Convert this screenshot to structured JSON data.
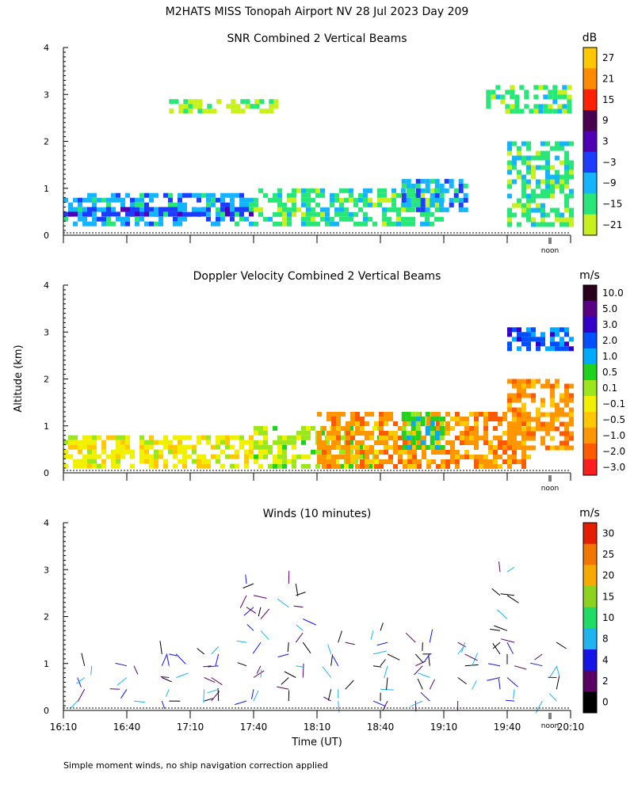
{
  "page_title": "M2HATS MISS Tonopah Airport NV  28 Jul 2023 Day 209",
  "footnote": "Simple moment winds, no ship navigation correction applied",
  "shared": {
    "ylabel": "Altitude (km)",
    "xlabel": "Time (UT)",
    "yticks": [
      "0",
      "1",
      "2",
      "3",
      "4"
    ],
    "xticks": [
      "16:10",
      "16:40",
      "17:10",
      "17:40",
      "18:10",
      "18:40",
      "19:10",
      "19:40",
      "20:10"
    ],
    "noon_marker": "noon",
    "ylim": [
      0,
      4
    ],
    "xlim": [
      "16:10",
      "20:10"
    ]
  },
  "chart_data": [
    {
      "type": "heatmap",
      "title": "SNR Combined 2 Vertical Beams",
      "colorbar_unit": "dB",
      "colorbar_labels": [
        "27",
        "21",
        "15",
        "9",
        "3",
        "−3",
        "−9",
        "−15",
        "−21"
      ],
      "colorbar_colors": [
        "#ffc800",
        "#ff8c00",
        "#ff2000",
        "#4a0050",
        "#5000b4",
        "#1c3cff",
        "#14b4ff",
        "#28e678",
        "#c8f01e"
      ],
      "ylim": [
        0,
        4
      ],
      "regions": [
        {
          "time": [
            "16:10",
            "17:40"
          ],
          "altitude_km": [
            0.2,
            0.9
          ],
          "dominant": "−9"
        },
        {
          "time": [
            "16:10",
            "17:40"
          ],
          "altitude_km": [
            0.4,
            0.6
          ],
          "dominant": "−3"
        },
        {
          "time": [
            "17:40",
            "19:10"
          ],
          "altitude_km": [
            0.2,
            1.0
          ],
          "dominant": "−15"
        },
        {
          "time": [
            "18:50",
            "19:20"
          ],
          "altitude_km": [
            0.5,
            1.2
          ],
          "dominant": "−9"
        },
        {
          "time": [
            "17:00",
            "17:50"
          ],
          "altitude_km": [
            2.6,
            2.9
          ],
          "dominant": "−21"
        },
        {
          "time": [
            "19:30",
            "20:10"
          ],
          "altitude_km": [
            2.6,
            3.2
          ],
          "dominant": "−15"
        },
        {
          "time": [
            "19:40",
            "20:10"
          ],
          "altitude_km": [
            0.2,
            2.0
          ],
          "dominant": "−15"
        }
      ]
    },
    {
      "type": "heatmap",
      "title": "Doppler Velocity Combined 2 Vertical Beams",
      "colorbar_unit": "m/s",
      "colorbar_labels": [
        "10.0",
        "5.0",
        "3.0",
        "2.0",
        "1.0",
        "0.5",
        "0.1",
        "−0.1",
        "−0.5",
        "−1.0",
        "−2.0",
        "−3.0"
      ],
      "colorbar_colors": [
        "#28001e",
        "#5a0082",
        "#3200c8",
        "#0050ff",
        "#00aaff",
        "#1ed21e",
        "#9be61e",
        "#f0f000",
        "#ffc800",
        "#ff9600",
        "#ff5a00",
        "#ff1e1e"
      ],
      "ylim": [
        0,
        4
      ],
      "regions": [
        {
          "time": [
            "16:10",
            "17:40"
          ],
          "altitude_km": [
            0.1,
            0.8
          ],
          "dominant": "−0.1"
        },
        {
          "time": [
            "17:40",
            "18:40"
          ],
          "altitude_km": [
            0.1,
            1.0
          ],
          "dominant": "0.1"
        },
        {
          "time": [
            "18:10",
            "19:50"
          ],
          "altitude_km": [
            0.1,
            1.3
          ],
          "dominant": "−1.0"
        },
        {
          "time": [
            "18:50",
            "19:10"
          ],
          "altitude_km": [
            0.5,
            1.3
          ],
          "dominant": "0.5"
        },
        {
          "time": [
            "19:40",
            "20:10"
          ],
          "altitude_km": [
            0.5,
            2.0
          ],
          "dominant": "−1.0"
        },
        {
          "time": [
            "19:40",
            "20:10"
          ],
          "altitude_km": [
            2.6,
            3.1
          ],
          "dominant": "2.0"
        }
      ]
    },
    {
      "type": "scatter",
      "title": "Winds (10 minutes)",
      "colorbar_unit": "m/s",
      "colorbar_labels": [
        "30",
        "25",
        "20",
        "15",
        "10",
        "8",
        "4",
        "2",
        "0"
      ],
      "colorbar_colors": [
        "#e61e00",
        "#f07800",
        "#f5aa00",
        "#8cd21e",
        "#1edc64",
        "#1eb4f0",
        "#1414e6",
        "#5a0064",
        "#000000"
      ],
      "ylim": [
        0,
        4
      ],
      "x": [
        "16:20",
        "16:40",
        "17:00",
        "17:20",
        "17:40",
        "18:00",
        "18:20",
        "18:40",
        "19:00",
        "19:20",
        "19:40",
        "20:00"
      ],
      "max_wind_altitude_km": [
        1.0,
        1.0,
        1.2,
        1.4,
        2.8,
        2.9,
        1.5,
        1.8,
        1.5,
        1.6,
        3.0,
        1.5
      ]
    }
  ]
}
